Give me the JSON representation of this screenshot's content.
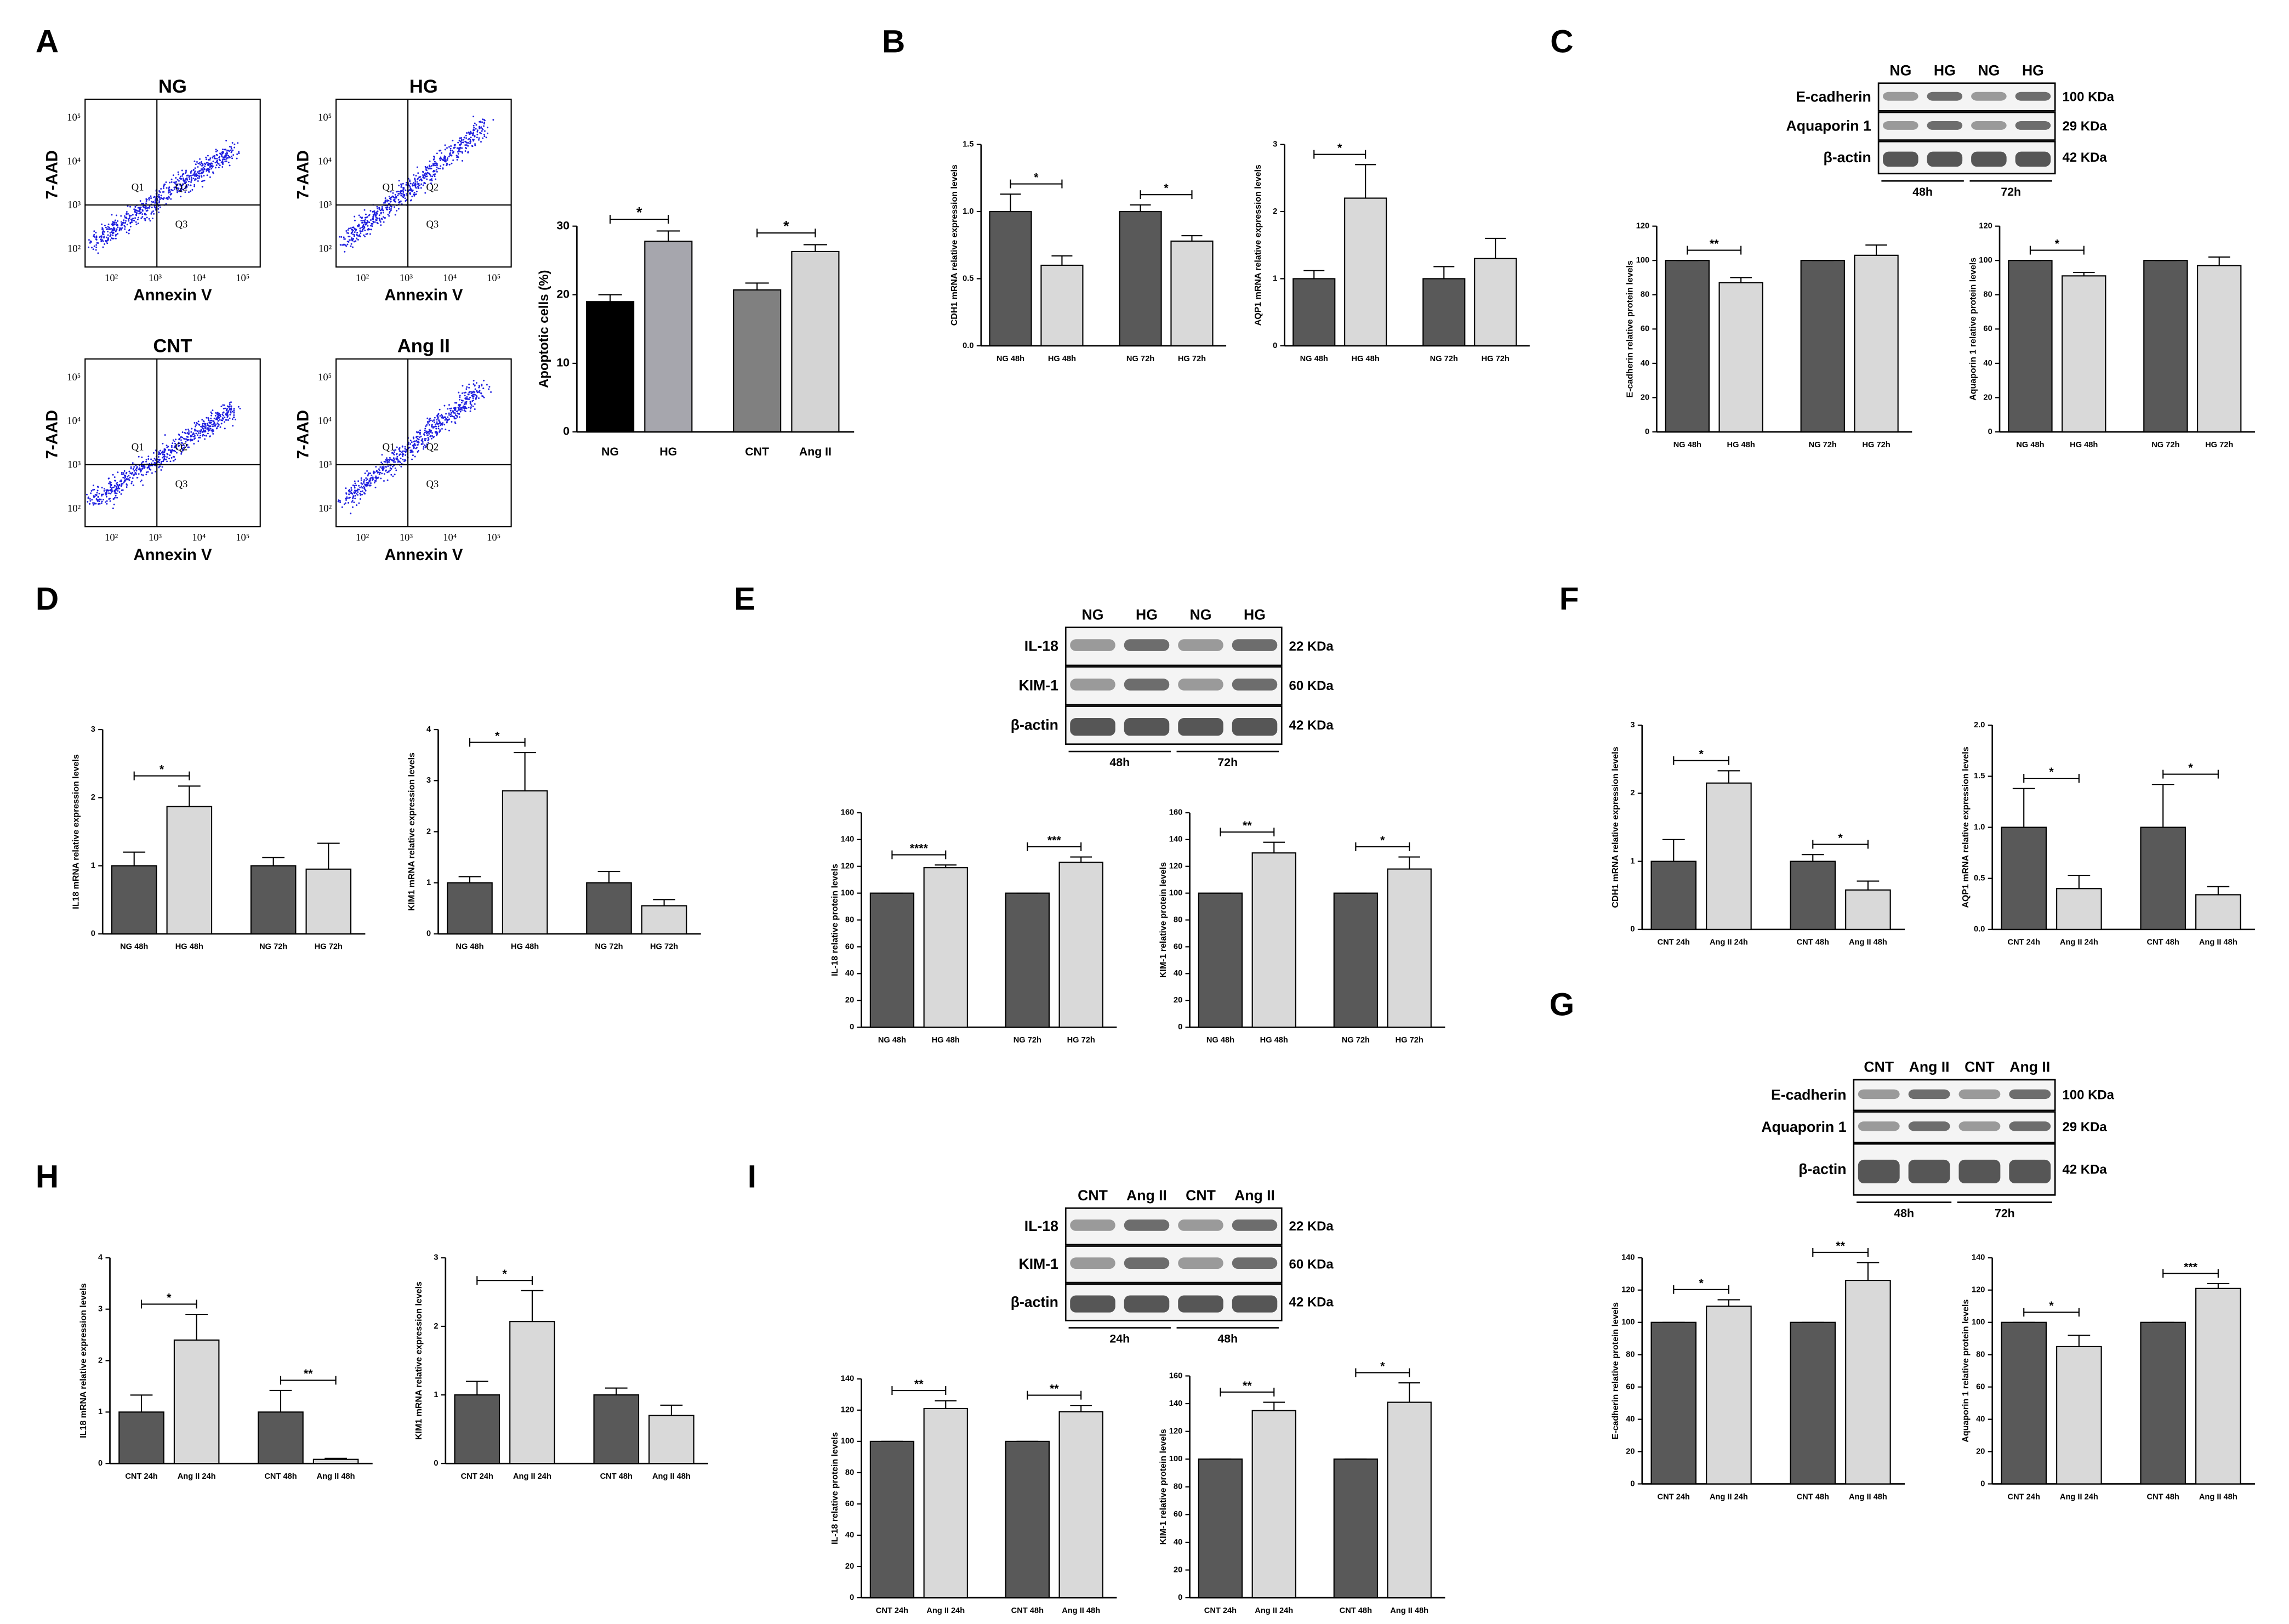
{
  "panel_letters": [
    "A",
    "B",
    "C",
    "D",
    "E",
    "F",
    "G",
    "H",
    "I"
  ],
  "flow_cytometry": {
    "xlabel": "Annexin V",
    "ylabel": "7-AAD",
    "ticks": [
      "10²",
      "10³",
      "10⁴",
      "10⁵"
    ],
    "plots": [
      {
        "title": "NG",
        "quadrants": [
          "Q1",
          "Q2",
          "Q3"
        ]
      },
      {
        "title": "HG",
        "quadrants": [
          "Q1",
          "Q2",
          "Q3"
        ]
      },
      {
        "title": "CNT",
        "quadrants": [
          "Q1",
          "Q2",
          "Q3"
        ]
      },
      {
        "title": "Ang II",
        "quadrants": [
          "Q1",
          "Q2",
          "Q3"
        ]
      }
    ]
  },
  "blots": [
    {
      "columns": [
        "NG",
        "HG",
        "NG",
        "HG"
      ],
      "rows": [
        {
          "name": "E-cadherin",
          "size": "100 KDa"
        },
        {
          "name": "Aquaporin 1",
          "size": "29 KDa"
        },
        {
          "name": "β-actin",
          "size": "42 KDa"
        }
      ],
      "times": [
        "48h",
        "72h"
      ]
    },
    {
      "columns": [
        "NG",
        "HG",
        "NG",
        "HG"
      ],
      "rows": [
        {
          "name": "IL-18",
          "size": "22 KDa"
        },
        {
          "name": "KIM-1",
          "size": "60 KDa"
        },
        {
          "name": "β-actin",
          "size": "42 KDa"
        }
      ],
      "times": [
        "48h",
        "72h"
      ]
    },
    {
      "columns": [
        "CNT",
        "Ang II",
        "CNT",
        "Ang II"
      ],
      "rows": [
        {
          "name": "E-cadherin",
          "size": "100 KDa"
        },
        {
          "name": "Aquaporin 1",
          "size": "29 KDa"
        },
        {
          "name": "β-actin",
          "size": "42 KDa"
        }
      ],
      "times": [
        "48h",
        "72h"
      ]
    },
    {
      "columns": [
        "CNT",
        "Ang II",
        "CNT",
        "Ang II"
      ],
      "rows": [
        {
          "name": "IL-18",
          "size": "22 KDa"
        },
        {
          "name": "KIM-1",
          "size": "60 KDa"
        },
        {
          "name": "β-actin",
          "size": "42 KDa"
        }
      ],
      "times": [
        "24h",
        "48h"
      ]
    }
  ],
  "chart_data": [
    {
      "type": "bar",
      "ylabel": "Apoptotic cells (%)",
      "categories": [
        "NG",
        "HG",
        "CNT",
        "Ang II"
      ],
      "values": [
        19,
        27.8,
        20.7,
        26.3
      ],
      "errors": [
        1,
        1.5,
        1,
        1
      ],
      "colors": [
        "#000000",
        "#a6a6ad",
        "#808080",
        "#d4d4d4"
      ],
      "ylim": [
        0,
        30
      ],
      "yticks": [
        0,
        10,
        20,
        30
      ],
      "brackets": [
        {
          "from": 0,
          "to": 1,
          "label": "*"
        },
        {
          "from": 2,
          "to": 3,
          "label": "*"
        }
      ]
    },
    {
      "type": "bar",
      "ylabel": "CDH1 mRNA relative expression levels",
      "categories": [
        "NG 48h",
        "HG 48h",
        "NG 72h",
        "HG 72h"
      ],
      "values": [
        1.0,
        0.6,
        1.0,
        0.78
      ],
      "errors": [
        0.13,
        0.07,
        0.05,
        0.04
      ],
      "colors": [
        "#595959",
        "#d9d9d9",
        "#595959",
        "#d9d9d9"
      ],
      "ylim": [
        0,
        1.5
      ],
      "yticks": [
        {
          "value": 0,
          "label": "0.0"
        },
        {
          "value": 0.5,
          "label": "0.5"
        },
        {
          "value": 1,
          "label": "1.0"
        },
        {
          "value": 1.5,
          "label": "1.5"
        }
      ],
      "brackets": [
        {
          "from": 0,
          "to": 1,
          "label": "*"
        },
        {
          "from": 2,
          "to": 3,
          "label": "*"
        }
      ]
    },
    {
      "type": "bar",
      "ylabel": "AQP1 mRNA relative expression levels",
      "categories": [
        "NG 48h",
        "HG 48h",
        "NG 72h",
        "HG 72h"
      ],
      "values": [
        1.0,
        2.2,
        1.0,
        1.3
      ],
      "errors": [
        0.12,
        0.5,
        0.18,
        0.3
      ],
      "colors": [
        "#595959",
        "#d9d9d9",
        "#595959",
        "#d9d9d9"
      ],
      "ylim": [
        0,
        3
      ],
      "yticks": [
        0,
        1,
        2,
        3
      ],
      "brackets": [
        {
          "from": 0,
          "to": 1,
          "label": "*"
        }
      ]
    },
    {
      "type": "bar",
      "ylabel": "E-cadherin relative protein levels",
      "categories": [
        "NG 48h",
        "HG 48h",
        "NG 72h",
        "HG 72h"
      ],
      "values": [
        100,
        87,
        100,
        103
      ],
      "errors": [
        0,
        3,
        0,
        6
      ],
      "colors": [
        "#595959",
        "#d9d9d9",
        "#595959",
        "#d9d9d9"
      ],
      "ylim": [
        0,
        120
      ],
      "yticks": [
        0,
        20,
        40,
        60,
        80,
        100,
        120
      ],
      "brackets": [
        {
          "from": 0,
          "to": 1,
          "label": "**"
        }
      ]
    },
    {
      "type": "bar",
      "ylabel": "Aquaporin 1 relative protein levels",
      "categories": [
        "NG 48h",
        "HG 48h",
        "NG 72h",
        "HG 72h"
      ],
      "values": [
        100,
        91,
        100,
        97
      ],
      "errors": [
        0,
        2,
        0,
        5
      ],
      "colors": [
        "#595959",
        "#d9d9d9",
        "#595959",
        "#d9d9d9"
      ],
      "ylim": [
        0,
        120
      ],
      "yticks": [
        0,
        20,
        40,
        60,
        80,
        100,
        120
      ],
      "brackets": [
        {
          "from": 0,
          "to": 1,
          "label": "*"
        }
      ]
    },
    {
      "type": "bar",
      "ylabel": "IL18 mRNA relative expression levels",
      "categories": [
        "NG 48h",
        "HG 48h",
        "NG 72h",
        "HG 72h"
      ],
      "values": [
        1.0,
        1.87,
        1.0,
        0.95
      ],
      "errors": [
        0.2,
        0.3,
        0.12,
        0.38
      ],
      "colors": [
        "#595959",
        "#d9d9d9",
        "#595959",
        "#d9d9d9"
      ],
      "ylim": [
        0,
        3
      ],
      "yticks": [
        0,
        1,
        2,
        3
      ],
      "brackets": [
        {
          "from": 0,
          "to": 1,
          "label": "*"
        }
      ]
    },
    {
      "type": "bar",
      "ylabel": "KIM1 mRNA relative expression levels",
      "categories": [
        "NG 48h",
        "HG 48h",
        "NG 72h",
        "HG 72h"
      ],
      "values": [
        1.0,
        2.8,
        1.0,
        0.55
      ],
      "errors": [
        0.12,
        0.75,
        0.22,
        0.12
      ],
      "colors": [
        "#595959",
        "#d9d9d9",
        "#595959",
        "#d9d9d9"
      ],
      "ylim": [
        0,
        4
      ],
      "yticks": [
        0,
        1,
        2,
        3,
        4
      ],
      "brackets": [
        {
          "from": 0,
          "to": 1,
          "label": "*"
        }
      ]
    },
    {
      "type": "bar",
      "ylabel": "IL-18 relative protein levels",
      "categories": [
        "NG 48h",
        "HG 48h",
        "NG 72h",
        "HG 72h"
      ],
      "values": [
        100,
        119,
        100,
        123
      ],
      "errors": [
        0,
        2,
        0,
        4
      ],
      "colors": [
        "#595959",
        "#d9d9d9",
        "#595959",
        "#d9d9d9"
      ],
      "ylim": [
        0,
        160
      ],
      "yticks": [
        0,
        20,
        40,
        60,
        80,
        100,
        120,
        140,
        160
      ],
      "brackets": [
        {
          "from": 0,
          "to": 1,
          "label": "****"
        },
        {
          "from": 2,
          "to": 3,
          "label": "***"
        }
      ]
    },
    {
      "type": "bar",
      "ylabel": "KIM-1 relative protein levels",
      "categories": [
        "NG 48h",
        "HG 48h",
        "NG 72h",
        "HG 72h"
      ],
      "values": [
        100,
        130,
        100,
        118
      ],
      "errors": [
        0,
        8,
        0,
        9
      ],
      "colors": [
        "#595959",
        "#d9d9d9",
        "#595959",
        "#d9d9d9"
      ],
      "ylim": [
        0,
        160
      ],
      "yticks": [
        0,
        20,
        40,
        60,
        80,
        100,
        120,
        140,
        160
      ],
      "brackets": [
        {
          "from": 0,
          "to": 1,
          "label": "**"
        },
        {
          "from": 2,
          "to": 3,
          "label": "*"
        }
      ]
    },
    {
      "type": "bar",
      "ylabel": "CDH1 mRNA relative expression levels",
      "categories": [
        "CNT 24h",
        "Ang II 24h",
        "CNT 48h",
        "Ang II 48h"
      ],
      "values": [
        1.0,
        2.15,
        1.0,
        0.58
      ],
      "errors": [
        0.32,
        0.18,
        0.1,
        0.13
      ],
      "colors": [
        "#595959",
        "#d9d9d9",
        "#595959",
        "#d9d9d9"
      ],
      "ylim": [
        0,
        3
      ],
      "yticks": [
        0,
        1,
        2,
        3
      ],
      "brackets": [
        {
          "from": 0,
          "to": 1,
          "label": "*"
        },
        {
          "from": 2,
          "to": 3,
          "label": "*"
        }
      ]
    },
    {
      "type": "bar",
      "ylabel": "AQP1 mRNA relative expression levels",
      "categories": [
        "CNT 24h",
        "Ang II 24h",
        "CNT 48h",
        "Ang II 48h"
      ],
      "values": [
        1.0,
        0.4,
        1.0,
        0.34
      ],
      "errors": [
        0.38,
        0.13,
        0.42,
        0.08
      ],
      "colors": [
        "#595959",
        "#d9d9d9",
        "#595959",
        "#d9d9d9"
      ],
      "ylim": [
        0,
        2
      ],
      "yticks": [
        {
          "value": 0,
          "label": "0.0"
        },
        {
          "value": 0.5,
          "label": "0.5"
        },
        {
          "value": 1,
          "label": "1.0"
        },
        {
          "value": 1.5,
          "label": "1.5"
        },
        {
          "value": 2,
          "label": "2.0"
        }
      ],
      "brackets": [
        {
          "from": 0,
          "to": 1,
          "label": "*"
        },
        {
          "from": 2,
          "to": 3,
          "label": "*"
        }
      ]
    },
    {
      "type": "bar",
      "ylabel": "E-cadherin relative protein levels",
      "categories": [
        "CNT 24h",
        "Ang II 24h",
        "CNT 48h",
        "Ang II 48h"
      ],
      "values": [
        100,
        110,
        100,
        126
      ],
      "errors": [
        0,
        4,
        0,
        11
      ],
      "colors": [
        "#595959",
        "#d9d9d9",
        "#595959",
        "#d9d9d9"
      ],
      "ylim": [
        0,
        140
      ],
      "yticks": [
        0,
        20,
        40,
        60,
        80,
        100,
        120,
        140
      ],
      "brackets": [
        {
          "from": 0,
          "to": 1,
          "label": "*"
        },
        {
          "from": 2,
          "to": 3,
          "label": "**"
        }
      ]
    },
    {
      "type": "bar",
      "ylabel": "Aquaporin 1 relative protein levels",
      "categories": [
        "CNT 24h",
        "Ang II 24h",
        "CNT 48h",
        "Ang II 48h"
      ],
      "values": [
        100,
        85,
        100,
        121
      ],
      "errors": [
        0,
        7,
        0,
        3
      ],
      "colors": [
        "#595959",
        "#d9d9d9",
        "#595959",
        "#d9d9d9"
      ],
      "ylim": [
        0,
        140
      ],
      "yticks": [
        0,
        20,
        40,
        60,
        80,
        100,
        120,
        140
      ],
      "brackets": [
        {
          "from": 0,
          "to": 1,
          "label": "*"
        },
        {
          "from": 2,
          "to": 3,
          "label": "***"
        }
      ]
    },
    {
      "type": "bar",
      "ylabel": "IL18 mRNA relative expression levels",
      "categories": [
        "CNT 24h",
        "Ang II 24h",
        "CNT 48h",
        "Ang II 48h"
      ],
      "values": [
        1.0,
        2.4,
        1.0,
        0.08
      ],
      "errors": [
        0.33,
        0.5,
        0.42,
        0.02
      ],
      "colors": [
        "#595959",
        "#d9d9d9",
        "#595959",
        "#d9d9d9"
      ],
      "ylim": [
        0,
        4
      ],
      "yticks": [
        0,
        1,
        2,
        3,
        4
      ],
      "brackets": [
        {
          "from": 0,
          "to": 1,
          "label": "*"
        },
        {
          "from": 2,
          "to": 3,
          "label": "**"
        }
      ]
    },
    {
      "type": "bar",
      "ylabel": "KIM1 mRNA relative expression levels",
      "categories": [
        "CNT 24h",
        "Ang II 24h",
        "CNT 48h",
        "Ang II 48h"
      ],
      "values": [
        1.0,
        2.07,
        1.0,
        0.7
      ],
      "errors": [
        0.2,
        0.45,
        0.1,
        0.15
      ],
      "colors": [
        "#595959",
        "#d9d9d9",
        "#595959",
        "#d9d9d9"
      ],
      "ylim": [
        0,
        3
      ],
      "yticks": [
        0,
        1,
        2,
        3
      ],
      "brackets": [
        {
          "from": 0,
          "to": 1,
          "label": "*"
        }
      ]
    },
    {
      "type": "bar",
      "ylabel": "IL-18 relative protein levels",
      "categories": [
        "CNT 24h",
        "Ang II 24h",
        "CNT 48h",
        "Ang II 48h"
      ],
      "values": [
        100,
        121,
        100,
        119
      ],
      "errors": [
        0,
        5,
        0,
        4
      ],
      "colors": [
        "#595959",
        "#d9d9d9",
        "#595959",
        "#d9d9d9"
      ],
      "ylim": [
        0,
        140
      ],
      "yticks": [
        0,
        20,
        40,
        60,
        80,
        100,
        120,
        140
      ],
      "brackets": [
        {
          "from": 0,
          "to": 1,
          "label": "**"
        },
        {
          "from": 2,
          "to": 3,
          "label": "**"
        }
      ]
    },
    {
      "type": "bar",
      "ylabel": "KIM-1 relative protein levels",
      "categories": [
        "CNT 24h",
        "Ang II 24h",
        "CNT 48h",
        "Ang II 48h"
      ],
      "values": [
        100,
        135,
        100,
        141
      ],
      "errors": [
        0,
        6,
        0,
        14
      ],
      "colors": [
        "#595959",
        "#d9d9d9",
        "#595959",
        "#d9d9d9"
      ],
      "ylim": [
        0,
        160
      ],
      "yticks": [
        0,
        20,
        40,
        60,
        80,
        100,
        120,
        140,
        160
      ],
      "brackets": [
        {
          "from": 0,
          "to": 1,
          "label": "**"
        },
        {
          "from": 2,
          "to": 3,
          "label": "*"
        }
      ]
    }
  ]
}
